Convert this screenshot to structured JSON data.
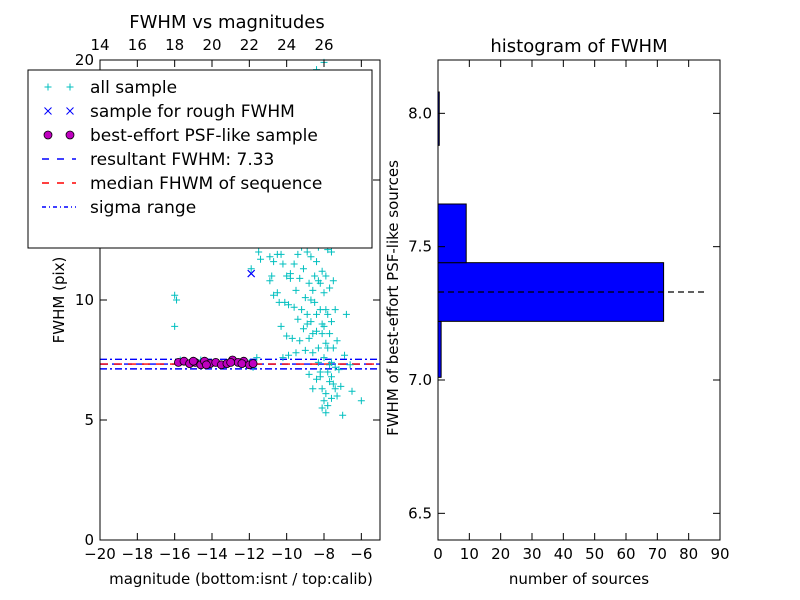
{
  "chart_data": [
    {
      "type": "scatter",
      "title": "FWHM vs magnitudes",
      "xlabel": "magnitude (bottom:isnt / top:calib)",
      "ylabel": "FWHM (pix)",
      "xlim": [
        -20,
        -5
      ],
      "ylim": [
        0,
        20
      ],
      "x_ticks": [
        -20,
        -18,
        -16,
        -14,
        -12,
        -10,
        -8,
        -6
      ],
      "x_tick_labels": [
        "−20",
        "−18",
        "−16",
        "−14",
        "−12",
        "−10",
        "−8",
        "−6"
      ],
      "y_ticks": [
        0,
        5,
        10,
        15,
        20
      ],
      "y_tick_labels": [
        "0",
        "5",
        "10",
        "15",
        "20"
      ],
      "top_axis": {
        "offset": 34,
        "ticks": [
          14,
          16,
          18,
          20,
          22,
          24,
          26
        ],
        "tick_labels": [
          "14",
          "16",
          "18",
          "20",
          "22",
          "24",
          "26"
        ]
      },
      "grid": false,
      "legend_position": "top-left",
      "series": [
        {
          "name": "all sample",
          "marker": "+",
          "color": "#00bfbf",
          "points": [
            [
              -16.0,
              10.2
            ],
            [
              -16.0,
              8.9
            ],
            [
              -15.9,
              10.0
            ],
            [
              -15.7,
              7.5
            ],
            [
              -15.2,
              7.4
            ],
            [
              -14.6,
              7.5
            ],
            [
              -13.9,
              7.4
            ],
            [
              -13.3,
              7.3
            ],
            [
              -12.6,
              7.4
            ],
            [
              -12.0,
              7.4
            ],
            [
              -11.9,
              11.3
            ],
            [
              -11.8,
              7.2
            ],
            [
              -11.6,
              7.6
            ],
            [
              -11.5,
              12.0
            ],
            [
              -11.4,
              11.7
            ],
            [
              -11.2,
              13.4
            ],
            [
              -11.1,
              12.7
            ],
            [
              -10.9,
              10.8
            ],
            [
              -10.9,
              11.8
            ],
            [
              -10.8,
              11.0
            ],
            [
              -10.7,
              11.6
            ],
            [
              -10.7,
              10.2
            ],
            [
              -10.6,
              12.8
            ],
            [
              -10.5,
              11.9
            ],
            [
              -10.5,
              10.3
            ],
            [
              -10.4,
              12.4
            ],
            [
              -10.4,
              9.9
            ],
            [
              -10.3,
              11.9
            ],
            [
              -10.3,
              8.9
            ],
            [
              -10.2,
              11.5
            ],
            [
              -10.2,
              7.6
            ],
            [
              -10.1,
              12.8
            ],
            [
              -10.1,
              9.9
            ],
            [
              -10.0,
              11.0
            ],
            [
              -10.0,
              8.5
            ],
            [
              -9.9,
              12.8
            ],
            [
              -9.9,
              9.8
            ],
            [
              -9.9,
              7.7
            ],
            [
              -9.8,
              11.1
            ],
            [
              -9.8,
              10.9
            ],
            [
              -9.7,
              12.3
            ],
            [
              -9.7,
              8.4
            ],
            [
              -9.6,
              11.5
            ],
            [
              -9.6,
              9.7
            ],
            [
              -9.5,
              12.9
            ],
            [
              -9.5,
              10.4
            ],
            [
              -9.5,
              7.8
            ],
            [
              -9.4,
              11.9
            ],
            [
              -9.4,
              9.2
            ],
            [
              -9.3,
              13.9
            ],
            [
              -9.3,
              10.9
            ],
            [
              -9.3,
              8.3
            ],
            [
              -9.2,
              12.2
            ],
            [
              -9.2,
              9.6
            ],
            [
              -9.1,
              14.6
            ],
            [
              -9.1,
              11.3
            ],
            [
              -9.1,
              8.8
            ],
            [
              -9.0,
              13.2
            ],
            [
              -9.0,
              10.1
            ],
            [
              -9.0,
              7.9
            ],
            [
              -8.9,
              15.1
            ],
            [
              -8.9,
              12.0
            ],
            [
              -8.9,
              9.4
            ],
            [
              -8.8,
              17.5
            ],
            [
              -8.8,
              13.6
            ],
            [
              -8.8,
              10.7
            ],
            [
              -8.8,
              8.4
            ],
            [
              -8.7,
              14.8
            ],
            [
              -8.7,
              11.8
            ],
            [
              -8.7,
              9.1
            ],
            [
              -8.6,
              16.2
            ],
            [
              -8.6,
              13.1
            ],
            [
              -8.6,
              10.4
            ],
            [
              -8.6,
              7.8
            ],
            [
              -8.5,
              15.3
            ],
            [
              -8.5,
              12.5
            ],
            [
              -8.5,
              9.9
            ],
            [
              -8.4,
              19.6
            ],
            [
              -8.4,
              14.2
            ],
            [
              -8.4,
              11.6
            ],
            [
              -8.4,
              8.7
            ],
            [
              -8.3,
              16.8
            ],
            [
              -8.3,
              13.4
            ],
            [
              -8.3,
              10.8
            ],
            [
              -8.3,
              7.4
            ],
            [
              -8.2,
              15.0
            ],
            [
              -8.2,
              12.4
            ],
            [
              -8.2,
              9.6
            ],
            [
              -8.2,
              6.8
            ],
            [
              -8.1,
              17.9
            ],
            [
              -8.1,
              14.1
            ],
            [
              -8.1,
              11.2
            ],
            [
              -8.1,
              8.6
            ],
            [
              -8.1,
              6.3
            ],
            [
              -8.0,
              19.9
            ],
            [
              -8.0,
              15.7
            ],
            [
              -8.0,
              12.9
            ],
            [
              -8.0,
              10.3
            ],
            [
              -8.0,
              7.6
            ],
            [
              -8.0,
              5.8
            ],
            [
              -7.9,
              16.2
            ],
            [
              -7.9,
              13.5
            ],
            [
              -7.9,
              11.0
            ],
            [
              -7.9,
              8.2
            ],
            [
              -7.9,
              6.1
            ],
            [
              -7.8,
              14.3
            ],
            [
              -7.8,
              12.1
            ],
            [
              -7.8,
              9.4
            ],
            [
              -7.8,
              7.0
            ],
            [
              -7.8,
              5.6
            ],
            [
              -7.7,
              13.2
            ],
            [
              -7.7,
              10.5
            ],
            [
              -7.7,
              8.6
            ],
            [
              -7.7,
              6.6
            ],
            [
              -7.6,
              12.0
            ],
            [
              -7.6,
              9.1
            ],
            [
              -7.6,
              7.4
            ],
            [
              -7.6,
              5.9
            ],
            [
              -7.5,
              10.8
            ],
            [
              -7.5,
              8.0
            ],
            [
              -7.5,
              6.5
            ],
            [
              -7.4,
              9.6
            ],
            [
              -7.4,
              7.2
            ],
            [
              -7.3,
              8.3
            ],
            [
              -7.3,
              6.0
            ],
            [
              -7.2,
              7.1
            ],
            [
              -7.1,
              6.4
            ],
            [
              -7.0,
              5.2
            ],
            [
              -6.9,
              7.7
            ],
            [
              -6.8,
              9.4
            ],
            [
              -6.6,
              7.3
            ],
            [
              -6.5,
              6.2
            ],
            [
              -6.0,
              5.8
            ],
            [
              -8.5,
              18.0
            ],
            [
              -8.9,
              17.6
            ],
            [
              -8.3,
              19.2
            ],
            [
              -9.2,
              16.6
            ],
            [
              -8.7,
              19.4
            ],
            [
              -8.6,
              18.5
            ],
            [
              -8.2,
              17.2
            ],
            [
              -8.4,
              16.0
            ],
            [
              -8.9,
              15.8
            ],
            [
              -9.4,
              14.6
            ],
            [
              -8.1,
              15.4
            ],
            [
              -8.0,
              13.8
            ],
            [
              -8.6,
              14.4
            ],
            [
              -8.8,
              12.8
            ],
            [
              -8.3,
              12.2
            ],
            [
              -8.5,
              11.0
            ],
            [
              -8.7,
              10.0
            ],
            [
              -8.2,
              10.7
            ],
            [
              -8.4,
              9.4
            ],
            [
              -8.6,
              8.6
            ],
            [
              -8.9,
              9.0
            ],
            [
              -8.1,
              9.0
            ],
            [
              -8.3,
              8.0
            ],
            [
              -8.0,
              8.9
            ],
            [
              -7.8,
              8.0
            ],
            [
              -7.9,
              9.6
            ],
            [
              -8.2,
              7.0
            ],
            [
              -7.7,
              7.3
            ],
            [
              -8.4,
              6.7
            ],
            [
              -8.6,
              6.3
            ],
            [
              -8.8,
              6.9
            ],
            [
              -7.6,
              6.8
            ],
            [
              -7.4,
              6.3
            ],
            [
              -7.9,
              5.3
            ],
            [
              -8.1,
              5.5
            ]
          ]
        },
        {
          "name": "sample for rough FWHM",
          "marker": "x",
          "color": "#0000ff",
          "points": [
            [
              -11.9,
              11.1
            ]
          ]
        },
        {
          "name": "best-effort PSF-like sample",
          "marker": "o",
          "color": "#bf00bf",
          "points": [
            [
              -15.8,
              7.4
            ],
            [
              -15.5,
              7.45
            ],
            [
              -15.2,
              7.35
            ],
            [
              -14.9,
              7.4
            ],
            [
              -14.6,
              7.3
            ],
            [
              -14.4,
              7.45
            ],
            [
              -14.1,
              7.35
            ],
            [
              -13.8,
              7.4
            ],
            [
              -13.5,
              7.3
            ],
            [
              -13.2,
              7.35
            ],
            [
              -12.9,
              7.5
            ],
            [
              -12.6,
              7.4
            ],
            [
              -12.3,
              7.45
            ],
            [
              -12.0,
              7.3
            ],
            [
              -11.8,
              7.35
            ],
            [
              -13.0,
              7.4
            ],
            [
              -14.3,
              7.3
            ],
            [
              -15.0,
              7.45
            ],
            [
              -12.4,
              7.35
            ]
          ]
        },
        {
          "name": "resultant FWHM: 7.33",
          "type": "hline",
          "style": "dashed",
          "color": "#0000ff",
          "y": 7.33
        },
        {
          "name": "median FHWM of sequence",
          "type": "hline",
          "style": "dashed",
          "color": "#ff0000",
          "y": 7.33
        },
        {
          "name": "sigma range",
          "type": "hlines",
          "style": "dashdot",
          "color": "#0000ff",
          "y": [
            7.13,
            7.53
          ]
        }
      ]
    },
    {
      "type": "bar",
      "orientation": "horizontal",
      "title": "histogram of FWHM",
      "xlabel": "number of sources",
      "ylabel": "FWHM of best-effort PSF-like sources",
      "xlim": [
        0,
        90
      ],
      "ylim": [
        6.4,
        8.2
      ],
      "x_ticks": [
        0,
        10,
        20,
        30,
        40,
        50,
        60,
        70,
        80,
        90
      ],
      "x_tick_labels": [
        "0",
        "10",
        "20",
        "30",
        "40",
        "50",
        "60",
        "70",
        "80",
        "90"
      ],
      "y_ticks": [
        6.5,
        7.0,
        7.5,
        8.0
      ],
      "y_tick_labels": [
        "6.5",
        "7.0",
        "7.5",
        "8.0"
      ],
      "bar_color": "#0000ff",
      "bins": [
        {
          "y0": 7.01,
          "y1": 7.22,
          "count": 1
        },
        {
          "y0": 7.22,
          "y1": 7.44,
          "count": 72
        },
        {
          "y0": 7.44,
          "y1": 7.66,
          "count": 9
        },
        {
          "y0": 7.88,
          "y1": 8.08,
          "count": 0.4
        }
      ],
      "reference_line": {
        "y": 7.33,
        "x_end": 86,
        "style": "dashed",
        "color": "#000000"
      }
    }
  ]
}
